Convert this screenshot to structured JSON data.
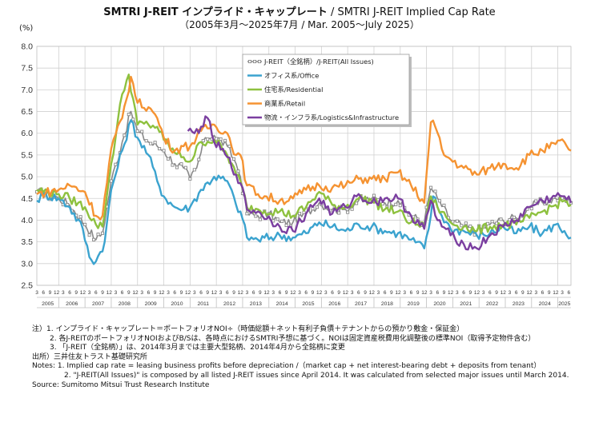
{
  "title": {
    "jp": "SMTRI J-REIT インプライド・キャップレート",
    "sep": " / ",
    "en": "SMTRI J-REIT Implied Cap Rate",
    "subtitle": "（2005年3月～2025年7月 / Mar. 2005～July 2025）"
  },
  "y_unit": "(%)",
  "notes": {
    "jp1": "注）1. インプライド・キャップレート＝ポートフォリオNOI÷（時価総額＋ネット有利子負債＋テナントからの預かり敷金・保証金）",
    "jp2": "2. 各J-REITのポートフォリオNOIおよびB/Sは、各時点におけるSMTRI予想に基づく。NOIは固定資産税費用化調整後の標準NOI（取得予定物件含む）",
    "jp3": "3. 「J-REIT（全銘柄）」は、2014年3月までは主要大型銘柄、2014年4月から全銘柄に変更",
    "jp_src": "出所）三井住友トラスト基礎研究所",
    "en1": "Notes: 1. Implied cap rate = leasing business profits before depreciation /（market cap + net interest-bearing debt + deposits  from  tenant）",
    "en2": "2. \"J-REIT(All Issues)\"   is composed by all listed J-REIT issues since April 2014.  It was calculated from selected major issues until March 2014.",
    "en_src": "Source: Sumitomo Mitsui Trust Research Institute"
  },
  "chart_data": {
    "type": "line",
    "title": "SMTRI J-REIT インプライド・キャップレート / SMTRI J-REIT Implied Cap Rate",
    "ylabel": "(%)",
    "ylim": [
      2.5,
      8.0
    ],
    "yticks": [
      "8.0",
      "7.5",
      "7.0",
      "6.5",
      "6.0",
      "5.5",
      "5.0",
      "4.5",
      "4.0",
      "3.5",
      "3.0",
      "2.5"
    ],
    "grid": true,
    "legend_position": "top-center",
    "month_ticks": [
      "3",
      "6",
      "9",
      "12"
    ],
    "years": [
      "2005",
      "2006",
      "2007",
      "2008",
      "2009",
      "2010",
      "2011",
      "2012",
      "2013",
      "2014",
      "2015",
      "2016",
      "2017",
      "2018",
      "2019",
      "2020",
      "2021",
      "2022",
      "2023",
      "2024",
      "2025"
    ],
    "x_start": "2005-03",
    "x_end": "2025-07",
    "series": [
      {
        "name": "J-REIT（全銘柄）/J-REIT(All Issues)",
        "color": "#888888",
        "marker": "square",
        "points": [
          [
            "2005-03",
            4.65
          ],
          [
            "2006-01",
            4.5
          ],
          [
            "2006-06",
            4.35
          ],
          [
            "2007-01",
            3.9
          ],
          [
            "2007-06",
            3.55
          ],
          [
            "2007-09",
            3.7
          ],
          [
            "2008-01",
            4.9
          ],
          [
            "2008-06",
            5.8
          ],
          [
            "2008-10",
            6.5
          ],
          [
            "2009-01",
            6.05
          ],
          [
            "2009-06",
            5.8
          ],
          [
            "2009-10",
            5.7
          ],
          [
            "2010-01",
            5.6
          ],
          [
            "2010-06",
            5.3
          ],
          [
            "2010-10",
            5.2
          ],
          [
            "2011-01",
            4.95
          ],
          [
            "2011-04",
            5.2
          ],
          [
            "2011-08",
            5.9
          ],
          [
            "2011-12",
            5.95
          ],
          [
            "2012-06",
            5.7
          ],
          [
            "2012-10",
            5.3
          ],
          [
            "2012-12",
            5.0
          ],
          [
            "2013-03",
            4.15
          ],
          [
            "2013-08",
            4.1
          ],
          [
            "2014-01",
            4.15
          ],
          [
            "2014-06",
            3.95
          ],
          [
            "2014-12",
            3.95
          ],
          [
            "2015-06",
            4.15
          ],
          [
            "2015-12",
            4.4
          ],
          [
            "2016-06",
            4.25
          ],
          [
            "2016-12",
            4.25
          ],
          [
            "2017-06",
            4.45
          ],
          [
            "2017-12",
            4.5
          ],
          [
            "2018-06",
            4.4
          ],
          [
            "2018-12",
            4.45
          ],
          [
            "2019-06",
            4.1
          ],
          [
            "2019-12",
            3.95
          ],
          [
            "2020-03",
            4.75
          ],
          [
            "2020-06",
            4.5
          ],
          [
            "2020-12",
            4.0
          ],
          [
            "2021-06",
            3.85
          ],
          [
            "2021-12",
            3.75
          ],
          [
            "2022-06",
            3.9
          ],
          [
            "2022-12",
            4.0
          ],
          [
            "2023-06",
            4.05
          ],
          [
            "2023-12",
            4.3
          ],
          [
            "2024-06",
            4.4
          ],
          [
            "2024-12",
            4.5
          ],
          [
            "2025-04",
            4.5
          ],
          [
            "2025-07",
            4.4
          ]
        ]
      },
      {
        "name": "オフィス系/Office",
        "color": "#3ba3cf",
        "points": [
          [
            "2005-03",
            4.45
          ],
          [
            "2005-06",
            4.6
          ],
          [
            "2006-01",
            4.5
          ],
          [
            "2006-06",
            4.3
          ],
          [
            "2006-12",
            3.8
          ],
          [
            "2007-03",
            3.15
          ],
          [
            "2007-06",
            3.05
          ],
          [
            "2007-10",
            3.5
          ],
          [
            "2008-01",
            4.7
          ],
          [
            "2008-06",
            5.6
          ],
          [
            "2008-10",
            6.3
          ],
          [
            "2009-01",
            5.9
          ],
          [
            "2009-06",
            5.5
          ],
          [
            "2009-10",
            4.9
          ],
          [
            "2010-01",
            4.55
          ],
          [
            "2010-06",
            4.3
          ],
          [
            "2010-10",
            4.25
          ],
          [
            "2011-01",
            4.3
          ],
          [
            "2011-06",
            4.7
          ],
          [
            "2011-12",
            5.0
          ],
          [
            "2012-06",
            4.9
          ],
          [
            "2012-10",
            4.35
          ],
          [
            "2012-12",
            4.2
          ],
          [
            "2013-03",
            3.6
          ],
          [
            "2013-08",
            3.55
          ],
          [
            "2014-06",
            3.65
          ],
          [
            "2014-12",
            3.6
          ],
          [
            "2015-06",
            3.7
          ],
          [
            "2015-12",
            3.95
          ],
          [
            "2016-06",
            3.85
          ],
          [
            "2016-12",
            3.75
          ],
          [
            "2017-06",
            3.9
          ],
          [
            "2017-12",
            3.85
          ],
          [
            "2018-06",
            3.75
          ],
          [
            "2018-12",
            3.7
          ],
          [
            "2019-06",
            3.55
          ],
          [
            "2019-12",
            3.35
          ],
          [
            "2020-03",
            4.1
          ],
          [
            "2020-04",
            4.55
          ],
          [
            "2020-08",
            4.1
          ],
          [
            "2020-12",
            3.8
          ],
          [
            "2021-06",
            3.75
          ],
          [
            "2021-12",
            3.65
          ],
          [
            "2022-06",
            3.7
          ],
          [
            "2022-12",
            3.85
          ],
          [
            "2023-06",
            3.7
          ],
          [
            "2023-12",
            3.85
          ],
          [
            "2024-06",
            3.7
          ],
          [
            "2024-12",
            3.9
          ],
          [
            "2025-04",
            3.75
          ],
          [
            "2025-07",
            3.6
          ]
        ]
      },
      {
        "name": "住宅系/Residential",
        "color": "#8ec13f",
        "points": [
          [
            "2005-03",
            4.7
          ],
          [
            "2006-01",
            4.6
          ],
          [
            "2006-06",
            4.5
          ],
          [
            "2007-01",
            4.3
          ],
          [
            "2007-06",
            3.9
          ],
          [
            "2007-09",
            3.85
          ],
          [
            "2008-01",
            5.3
          ],
          [
            "2008-06",
            6.9
          ],
          [
            "2008-09",
            7.35
          ],
          [
            "2009-01",
            6.2
          ],
          [
            "2009-06",
            6.2
          ],
          [
            "2009-10",
            6.15
          ],
          [
            "2010-01",
            5.85
          ],
          [
            "2010-06",
            5.55
          ],
          [
            "2010-10",
            5.45
          ],
          [
            "2011-01",
            5.35
          ],
          [
            "2011-06",
            5.8
          ],
          [
            "2011-12",
            5.85
          ],
          [
            "2012-06",
            5.5
          ],
          [
            "2012-10",
            5.05
          ],
          [
            "2012-12",
            4.9
          ],
          [
            "2013-03",
            4.3
          ],
          [
            "2013-08",
            4.25
          ],
          [
            "2014-06",
            4.2
          ],
          [
            "2014-12",
            4.1
          ],
          [
            "2015-06",
            4.3
          ],
          [
            "2015-12",
            4.65
          ],
          [
            "2016-06",
            4.35
          ],
          [
            "2016-12",
            4.3
          ],
          [
            "2017-06",
            4.5
          ],
          [
            "2017-12",
            4.45
          ],
          [
            "2018-06",
            4.25
          ],
          [
            "2018-12",
            4.2
          ],
          [
            "2019-06",
            3.95
          ],
          [
            "2019-12",
            3.85
          ],
          [
            "2020-03",
            4.55
          ],
          [
            "2020-06",
            4.3
          ],
          [
            "2020-12",
            3.95
          ],
          [
            "2021-06",
            3.85
          ],
          [
            "2021-12",
            3.75
          ],
          [
            "2022-06",
            3.85
          ],
          [
            "2022-12",
            3.9
          ],
          [
            "2023-06",
            3.9
          ],
          [
            "2023-12",
            4.05
          ],
          [
            "2024-06",
            4.2
          ],
          [
            "2024-12",
            4.35
          ],
          [
            "2025-04",
            4.45
          ],
          [
            "2025-07",
            4.35
          ]
        ]
      },
      {
        "name": "商業系/Retail",
        "color": "#f59332",
        "points": [
          [
            "2005-03",
            4.6
          ],
          [
            "2006-01",
            4.7
          ],
          [
            "2006-06",
            4.8
          ],
          [
            "2007-01",
            4.65
          ],
          [
            "2007-06",
            4.1
          ],
          [
            "2007-09",
            4.1
          ],
          [
            "2008-01",
            5.65
          ],
          [
            "2008-06",
            6.35
          ],
          [
            "2008-10",
            7.3
          ],
          [
            "2009-01",
            6.7
          ],
          [
            "2009-06",
            6.6
          ],
          [
            "2009-10",
            6.35
          ],
          [
            "2010-01",
            5.9
          ],
          [
            "2010-06",
            5.6
          ],
          [
            "2010-10",
            5.7
          ],
          [
            "2011-01",
            5.7
          ],
          [
            "2011-06",
            6.05
          ],
          [
            "2011-12",
            6.2
          ],
          [
            "2012-06",
            6.0
          ],
          [
            "2012-10",
            5.5
          ],
          [
            "2012-12",
            5.5
          ],
          [
            "2013-03",
            4.8
          ],
          [
            "2013-08",
            4.6
          ],
          [
            "2014-06",
            4.45
          ],
          [
            "2014-12",
            4.5
          ],
          [
            "2015-06",
            4.7
          ],
          [
            "2015-12",
            4.8
          ],
          [
            "2016-06",
            4.75
          ],
          [
            "2016-12",
            4.8
          ],
          [
            "2017-06",
            4.95
          ],
          [
            "2017-12",
            4.95
          ],
          [
            "2018-06",
            4.95
          ],
          [
            "2018-12",
            5.1
          ],
          [
            "2019-06",
            4.8
          ],
          [
            "2019-12",
            4.4
          ],
          [
            "2020-03",
            6.25
          ],
          [
            "2020-05",
            6.15
          ],
          [
            "2020-09",
            5.5
          ],
          [
            "2020-12",
            5.4
          ],
          [
            "2021-06",
            5.2
          ],
          [
            "2021-12",
            5.05
          ],
          [
            "2022-06",
            5.2
          ],
          [
            "2022-12",
            5.3
          ],
          [
            "2023-06",
            5.2
          ],
          [
            "2023-12",
            5.5
          ],
          [
            "2024-06",
            5.6
          ],
          [
            "2024-12",
            5.75
          ],
          [
            "2025-04",
            5.8
          ],
          [
            "2025-07",
            5.6
          ]
        ]
      },
      {
        "name": "物流・インフラ系/Logistics&Infrastructure",
        "color": "#7b3fa0",
        "points": [
          [
            "2010-12",
            6.05
          ],
          [
            "2011-03",
            6.0
          ],
          [
            "2011-06",
            6.15
          ],
          [
            "2011-09",
            6.35
          ],
          [
            "2011-12",
            5.8
          ],
          [
            "2012-06",
            5.45
          ],
          [
            "2012-10",
            5.05
          ],
          [
            "2012-12",
            4.85
          ],
          [
            "2013-03",
            4.25
          ],
          [
            "2013-08",
            4.2
          ],
          [
            "2014-06",
            3.85
          ],
          [
            "2014-12",
            3.75
          ],
          [
            "2015-06",
            4.15
          ],
          [
            "2015-12",
            4.5
          ],
          [
            "2016-06",
            4.15
          ],
          [
            "2016-12",
            4.3
          ],
          [
            "2017-06",
            4.6
          ],
          [
            "2017-12",
            4.4
          ],
          [
            "2018-06",
            4.5
          ],
          [
            "2018-12",
            4.5
          ],
          [
            "2019-06",
            4.1
          ],
          [
            "2019-12",
            3.8
          ],
          [
            "2020-03",
            4.45
          ],
          [
            "2020-06",
            4.0
          ],
          [
            "2020-12",
            3.65
          ],
          [
            "2021-06",
            3.45
          ],
          [
            "2021-12",
            3.35
          ],
          [
            "2022-06",
            3.65
          ],
          [
            "2022-12",
            3.85
          ],
          [
            "2023-06",
            4.0
          ],
          [
            "2023-12",
            4.3
          ],
          [
            "2024-06",
            4.45
          ],
          [
            "2024-12",
            4.55
          ],
          [
            "2025-04",
            4.55
          ],
          [
            "2025-07",
            4.4
          ]
        ]
      }
    ]
  }
}
